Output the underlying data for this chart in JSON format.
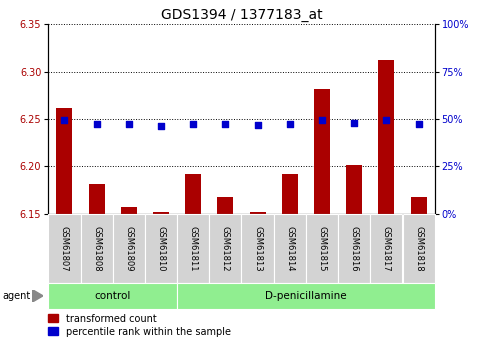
{
  "title": "GDS1394 / 1377183_at",
  "samples": [
    "GSM61807",
    "GSM61808",
    "GSM61809",
    "GSM61810",
    "GSM61811",
    "GSM61812",
    "GSM61813",
    "GSM61814",
    "GSM61815",
    "GSM61816",
    "GSM61817",
    "GSM61818"
  ],
  "red_values": [
    6.262,
    6.182,
    6.157,
    6.152,
    6.192,
    6.168,
    6.152,
    6.192,
    6.282,
    6.202,
    6.312,
    6.168
  ],
  "blue_values": [
    49.5,
    47.5,
    47.5,
    46.5,
    47.5,
    47.5,
    47.0,
    47.5,
    49.5,
    48.0,
    49.5,
    47.5
  ],
  "ylim_left": [
    6.15,
    6.35
  ],
  "ylim_right": [
    0,
    100
  ],
  "yticks_left": [
    6.15,
    6.2,
    6.25,
    6.3,
    6.35
  ],
  "yticks_right": [
    0,
    25,
    50,
    75,
    100
  ],
  "ytick_labels_right": [
    "0%",
    "25%",
    "50%",
    "75%",
    "100%"
  ],
  "control_count": 4,
  "bar_color": "#AA0000",
  "dot_color": "#0000CC",
  "bar_bottom": 6.15,
  "sample_box_color": "#D3D3D3",
  "group_box_color": "#90EE90",
  "agent_label": "agent",
  "legend_red": "transformed count",
  "legend_blue": "percentile rank within the sample",
  "title_fontsize": 10,
  "tick_fontsize": 7,
  "sample_fontsize": 6,
  "group_fontsize": 7.5,
  "legend_fontsize": 7
}
